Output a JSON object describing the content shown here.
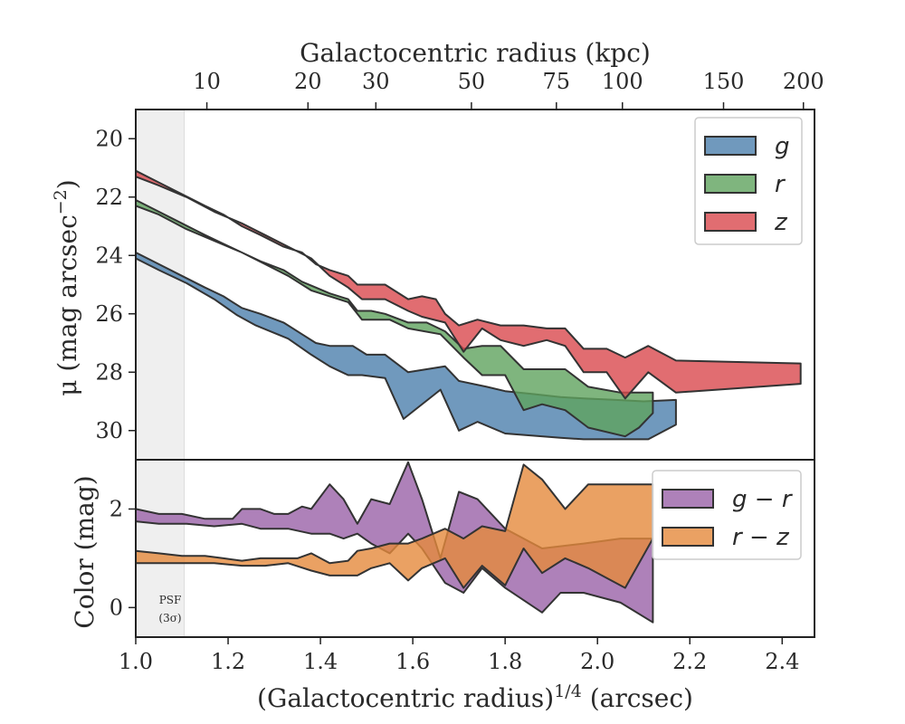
{
  "chart_data": [
    {
      "id": "surface_brightness",
      "type": "area",
      "x_variable": "(Galactocentric radius)^1/4 (arcsec)",
      "xlim": [
        1.0,
        2.47
      ],
      "ylim": [
        19,
        31
      ],
      "y_inverted": true,
      "ylabel_main": "μ (mag arcsec",
      "ylabel_sup": "−2",
      "ylabel_end": ")",
      "yticks": [
        20,
        22,
        24,
        26,
        28,
        30
      ],
      "top_axis": {
        "label": "Galactocentric radius (kpc)",
        "ticks": [
          10,
          20,
          30,
          50,
          75,
          100,
          150,
          200
        ],
        "tick_positions_x": [
          1.154,
          1.373,
          1.52,
          1.727,
          1.911,
          2.054,
          2.273,
          2.446
        ]
      },
      "psf_region": {
        "x_range": [
          1.0,
          1.105
        ],
        "label_line1": "PSF",
        "label_line2": "(3σ)"
      },
      "legend": {
        "location": "upper right",
        "entries": [
          "g",
          "r",
          "z"
        ]
      },
      "series": [
        {
          "name": "g",
          "color": "#4c7fad",
          "upper_x": [
            1.0,
            1.05,
            1.1,
            1.15,
            1.19,
            1.23,
            1.27,
            1.32,
            1.36,
            1.39,
            1.42,
            1.47,
            1.5,
            1.54,
            1.59,
            1.67,
            1.7,
            1.76,
            1.8,
            1.86,
            1.92,
            1.97,
            2.04,
            2.1,
            2.17
          ],
          "upper_y": [
            23.9,
            24.3,
            24.7,
            25.1,
            25.4,
            25.8,
            26.0,
            26.3,
            26.7,
            27.0,
            27.1,
            27.1,
            27.4,
            27.4,
            28.0,
            27.8,
            28.3,
            28.5,
            28.65,
            28.75,
            28.85,
            28.9,
            28.95,
            29.0,
            28.95
          ],
          "lower_x": [
            2.17,
            2.11,
            2.06,
            1.97,
            1.92,
            1.8,
            1.74,
            1.7,
            1.66,
            1.58,
            1.54,
            1.49,
            1.46,
            1.42,
            1.38,
            1.33,
            1.26,
            1.22,
            1.17,
            1.11,
            1.05,
            1.0
          ],
          "lower_y": [
            29.8,
            30.3,
            30.3,
            30.3,
            30.25,
            30.1,
            29.7,
            30.0,
            28.6,
            29.6,
            28.2,
            28.1,
            28.1,
            27.8,
            27.4,
            26.85,
            26.4,
            26.05,
            25.5,
            24.95,
            24.5,
            24.1
          ]
        },
        {
          "name": "r",
          "color": "#5fa35e",
          "upper_x": [
            1.0,
            1.05,
            1.1,
            1.15,
            1.19,
            1.23,
            1.27,
            1.32,
            1.36,
            1.39,
            1.42,
            1.46,
            1.48,
            1.51,
            1.54,
            1.59,
            1.63,
            1.67,
            1.71,
            1.75,
            1.79,
            1.84,
            1.88,
            1.93,
            1.98,
            2.05,
            2.12
          ],
          "upper_y": [
            22.1,
            22.5,
            22.9,
            23.3,
            23.6,
            23.9,
            24.2,
            24.5,
            24.9,
            25.1,
            25.3,
            25.5,
            25.9,
            25.9,
            26.0,
            26.3,
            26.3,
            26.6,
            27.2,
            27.1,
            27.1,
            27.9,
            27.9,
            27.9,
            28.5,
            28.7,
            28.7
          ],
          "lower_x": [
            2.12,
            2.09,
            2.06,
            1.98,
            1.93,
            1.88,
            1.84,
            1.8,
            1.75,
            1.71,
            1.66,
            1.59,
            1.55,
            1.49,
            1.46,
            1.42,
            1.38,
            1.33,
            1.28,
            1.23,
            1.17,
            1.11,
            1.05,
            1.0
          ],
          "lower_y": [
            29.4,
            29.9,
            30.2,
            29.9,
            29.3,
            29.1,
            29.3,
            28.1,
            28.1,
            27.5,
            26.7,
            26.5,
            26.2,
            26.2,
            25.6,
            25.4,
            25.2,
            24.7,
            24.3,
            23.9,
            23.5,
            23.1,
            22.6,
            22.3
          ]
        },
        {
          "name": "z",
          "color": "#d9484d",
          "upper_x": [
            1.0,
            1.05,
            1.1,
            1.15,
            1.19,
            1.23,
            1.27,
            1.32,
            1.36,
            1.39,
            1.42,
            1.46,
            1.48,
            1.51,
            1.54,
            1.59,
            1.62,
            1.65,
            1.67,
            1.7,
            1.74,
            1.79,
            1.84,
            1.89,
            1.93,
            1.97,
            2.02,
            2.06,
            2.11,
            2.17,
            2.44
          ],
          "upper_y": [
            21.1,
            21.5,
            21.9,
            22.3,
            22.6,
            23.0,
            23.3,
            23.7,
            23.9,
            24.3,
            24.5,
            24.7,
            25.0,
            25.0,
            25.0,
            25.5,
            25.4,
            25.5,
            26.0,
            26.4,
            26.2,
            26.4,
            26.4,
            26.5,
            26.5,
            27.2,
            27.2,
            27.5,
            27.1,
            27.6,
            27.7
          ],
          "lower_x": [
            2.44,
            2.17,
            2.11,
            2.06,
            2.02,
            1.97,
            1.93,
            1.89,
            1.84,
            1.79,
            1.75,
            1.71,
            1.67,
            1.62,
            1.59,
            1.54,
            1.49,
            1.46,
            1.42,
            1.38,
            1.33,
            1.28,
            1.23,
            1.17,
            1.11,
            1.05,
            1.0
          ],
          "lower_y": [
            28.4,
            28.7,
            28.0,
            28.9,
            28.0,
            28.0,
            27.1,
            26.9,
            27.1,
            26.9,
            26.5,
            27.3,
            26.3,
            26.1,
            25.9,
            25.5,
            25.5,
            25.1,
            24.7,
            24.1,
            23.7,
            23.3,
            22.9,
            22.5,
            22.0,
            21.6,
            21.3
          ]
        }
      ]
    },
    {
      "id": "color_profile",
      "type": "area",
      "xlabel_main": "(Galactocentric radius)",
      "xlabel_sup": "1/4",
      "xlabel_end": " (arcsec)",
      "ylabel": "Color (mag)",
      "xlim": [
        1.0,
        2.47
      ],
      "ylim": [
        -0.6,
        3.0
      ],
      "xticks": [
        1.0,
        1.2,
        1.4,
        1.6,
        1.8,
        2.0,
        2.2,
        2.4
      ],
      "xtick_labels": [
        "1.0",
        "1.2",
        "1.4",
        "1.6",
        "1.8",
        "2.0",
        "2.2",
        "2.4"
      ],
      "yticks": [
        0,
        2
      ],
      "legend": {
        "location": "upper right",
        "entries": [
          "g − r",
          "r − z"
        ]
      },
      "series": [
        {
          "name": "g − r",
          "color": "#9a62a8",
          "upper_x": [
            1.0,
            1.05,
            1.1,
            1.15,
            1.19,
            1.21,
            1.23,
            1.27,
            1.3,
            1.33,
            1.36,
            1.38,
            1.42,
            1.45,
            1.48,
            1.51,
            1.55,
            1.59,
            1.62,
            1.66,
            1.7,
            1.74,
            1.8,
            1.88,
            1.97,
            2.05,
            2.12
          ],
          "upper_y": [
            2.0,
            1.9,
            1.9,
            1.8,
            1.8,
            1.8,
            2.0,
            2.0,
            1.9,
            1.9,
            2.05,
            2.0,
            2.5,
            2.2,
            1.7,
            2.2,
            2.1,
            2.95,
            2.2,
            1.0,
            2.35,
            2.2,
            1.6,
            1.2,
            1.3,
            1.4,
            1.4
          ],
          "lower_x": [
            2.12,
            2.05,
            1.97,
            1.92,
            1.88,
            1.8,
            1.75,
            1.71,
            1.67,
            1.62,
            1.59,
            1.55,
            1.51,
            1.48,
            1.45,
            1.42,
            1.38,
            1.33,
            1.27,
            1.23,
            1.17,
            1.11,
            1.05,
            1.0
          ],
          "lower_y": [
            -0.3,
            0.1,
            0.3,
            0.3,
            -0.1,
            0.4,
            0.8,
            0.3,
            0.5,
            1.2,
            1.5,
            1.1,
            1.3,
            1.5,
            1.4,
            1.5,
            1.5,
            1.6,
            1.6,
            1.7,
            1.65,
            1.7,
            1.7,
            1.75
          ]
        },
        {
          "name": "r − z",
          "color": "#e5893c",
          "upper_x": [
            1.0,
            1.05,
            1.1,
            1.15,
            1.19,
            1.23,
            1.27,
            1.32,
            1.35,
            1.38,
            1.42,
            1.46,
            1.48,
            1.51,
            1.55,
            1.59,
            1.62,
            1.67,
            1.71,
            1.75,
            1.8,
            1.84,
            1.88,
            1.93,
            1.98,
            2.06,
            2.12
          ],
          "upper_y": [
            1.15,
            1.1,
            1.05,
            1.05,
            1.0,
            0.95,
            1.0,
            1.0,
            1.0,
            1.1,
            0.9,
            0.95,
            1.15,
            1.2,
            1.3,
            1.3,
            1.4,
            1.6,
            1.4,
            1.65,
            1.55,
            2.9,
            2.6,
            2.0,
            2.5,
            2.5,
            2.5
          ],
          "lower_x": [
            2.12,
            2.06,
            1.98,
            1.93,
            1.88,
            1.84,
            1.8,
            1.75,
            1.71,
            1.67,
            1.62,
            1.59,
            1.55,
            1.51,
            1.48,
            1.42,
            1.38,
            1.33,
            1.28,
            1.23,
            1.17,
            1.11,
            1.05,
            1.0
          ],
          "lower_y": [
            1.4,
            0.4,
            0.8,
            1.0,
            0.7,
            1.2,
            0.45,
            0.85,
            0.4,
            1.0,
            0.8,
            0.55,
            0.9,
            0.8,
            0.65,
            0.65,
            0.75,
            0.9,
            0.85,
            0.85,
            0.9,
            0.9,
            0.9,
            0.9
          ]
        }
      ]
    }
  ]
}
